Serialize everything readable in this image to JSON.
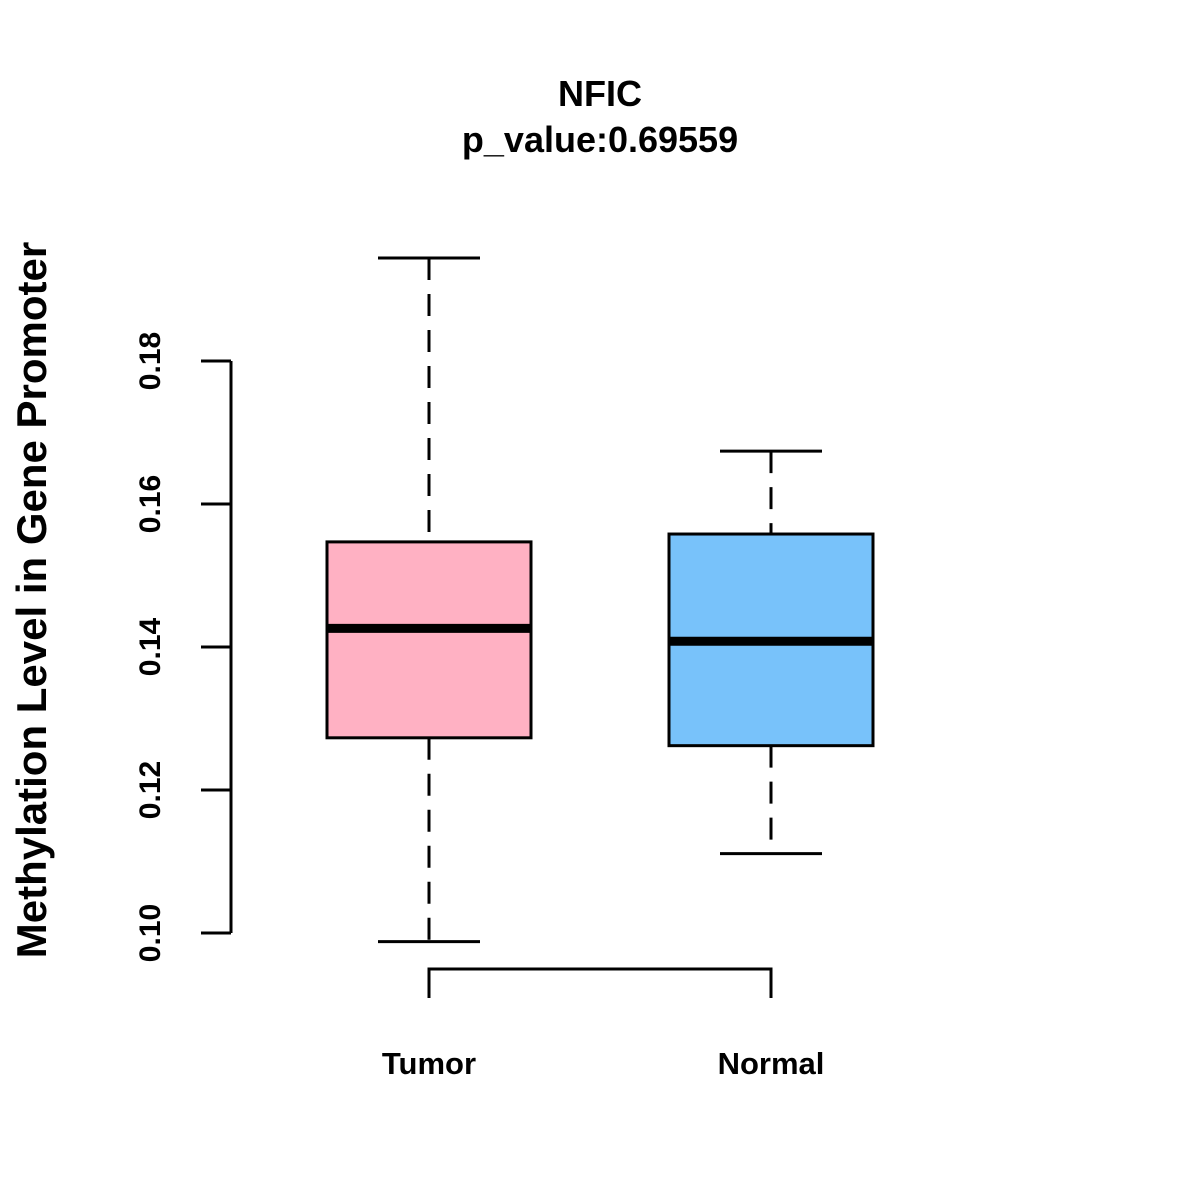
{
  "chart_data": {
    "type": "boxplot",
    "title": "NFIC",
    "subtitle": "p_value:0.69559",
    "xlabel": "",
    "ylabel": "Methylation Level in Gene Promoter",
    "ylim": [
      0.1,
      0.18
    ],
    "yticks": [
      "0.10",
      "0.12",
      "0.14",
      "0.16",
      "0.18"
    ],
    "grid": false,
    "categories": [
      "Tumor",
      "Normal"
    ],
    "series": [
      {
        "name": "Tumor",
        "color": "#FFB1C3",
        "whisker_low": 0.0988,
        "q1": 0.1273,
        "median": 0.1426,
        "q3": 0.1547,
        "whisker_high": 0.1944
      },
      {
        "name": "Normal",
        "color": "#78C2FA",
        "whisker_low": 0.1111,
        "q1": 0.1262,
        "median": 0.1408,
        "q3": 0.1558,
        "whisker_high": 0.1674
      }
    ],
    "significance_bracket": [
      "Tumor",
      "Normal"
    ]
  }
}
